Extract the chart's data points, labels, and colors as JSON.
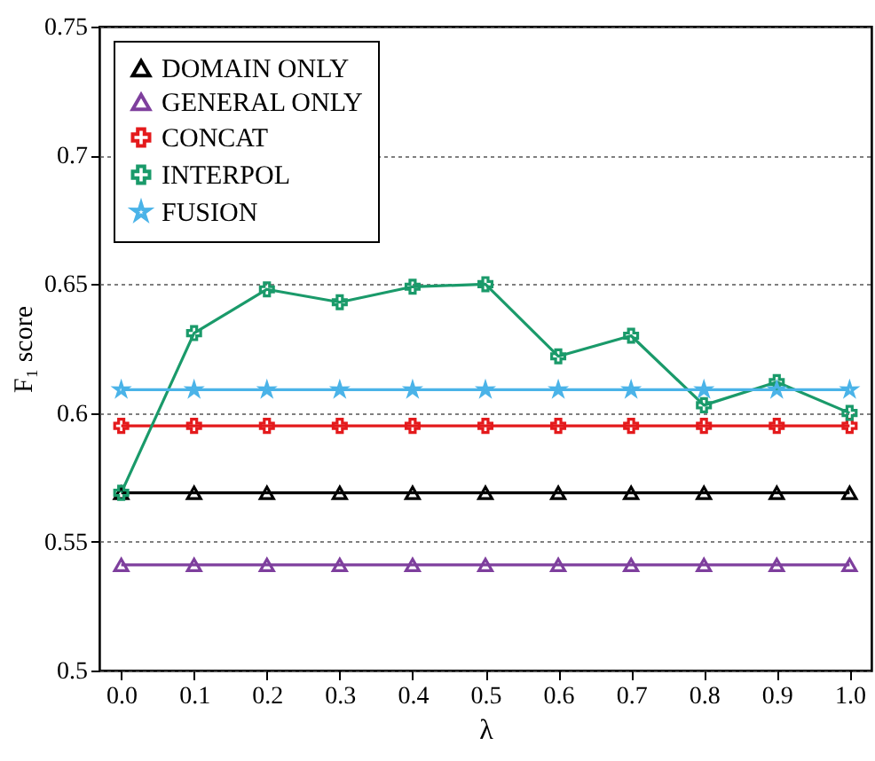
{
  "chart_data": {
    "type": "line",
    "xlabel": "λ",
    "ylabel": "F₁ score",
    "x": [
      0.0,
      0.1,
      0.2,
      0.3,
      0.4,
      0.5,
      0.6,
      0.7,
      0.8,
      0.9,
      1.0
    ],
    "xlim": [
      -0.03,
      1.03
    ],
    "xticks": [
      {
        "value": 0,
        "label": "0.0"
      },
      0.1,
      0.2,
      0.3,
      0.4,
      0.5,
      0.6,
      0.7,
      0.8,
      0.9,
      {
        "value": 1,
        "label": "1.0"
      }
    ],
    "ylim": [
      0.5,
      0.75
    ],
    "yticks": [
      0.5,
      0.55,
      0.6,
      0.65,
      0.7,
      0.75
    ],
    "grid": "y",
    "legend": "top left",
    "line_style": "solid",
    "series": [
      {
        "name": "DOMAIN ONLY",
        "color": "#000000",
        "marker": "triangle",
        "values": [
          0.569,
          0.569,
          0.569,
          0.569,
          0.569,
          0.569,
          0.569,
          0.569,
          0.569,
          0.569,
          0.569
        ]
      },
      {
        "name": "GENERAL ONLY",
        "color": "#7e3f9d",
        "marker": "triangle",
        "values": [
          0.541,
          0.541,
          0.541,
          0.541,
          0.541,
          0.541,
          0.541,
          0.541,
          0.541,
          0.541,
          0.541
        ]
      },
      {
        "name": "CONCAT",
        "color": "#e41a1c",
        "marker": "cross",
        "values": [
          0.595,
          0.595,
          0.595,
          0.595,
          0.595,
          0.595,
          0.595,
          0.595,
          0.595,
          0.595,
          0.595
        ]
      },
      {
        "name": "INTERPOL",
        "color": "#1a9a6a",
        "marker": "cross",
        "values": [
          0.569,
          0.631,
          0.648,
          0.643,
          0.649,
          0.65,
          0.622,
          0.63,
          0.603,
          0.612,
          0.6
        ]
      },
      {
        "name": "FUSION",
        "color": "#4ab3e8",
        "marker": "star",
        "values": [
          0.609,
          0.609,
          0.609,
          0.609,
          0.609,
          0.609,
          0.609,
          0.609,
          0.609,
          0.609,
          0.609
        ]
      }
    ]
  }
}
